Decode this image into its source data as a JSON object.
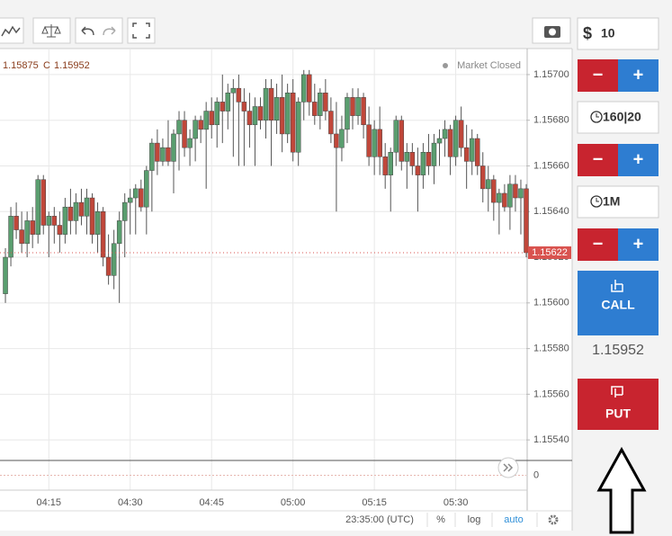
{
  "chart_data": {
    "type": "candlestick",
    "header": {
      "open": "1.15875",
      "close_letter": "C",
      "close": "1.15952"
    },
    "status": "Market Closed",
    "x": [
      "04:07",
      "04:08",
      "04:09",
      "04:10",
      "04:11",
      "04:12",
      "04:13",
      "04:14",
      "04:15",
      "04:16",
      "04:17",
      "04:18",
      "04:19",
      "04:20",
      "04:21",
      "04:22",
      "04:23",
      "04:24",
      "04:25",
      "04:26",
      "04:27",
      "04:28",
      "04:29",
      "04:30",
      "04:31",
      "04:32",
      "04:33",
      "04:34",
      "04:35",
      "04:36",
      "04:37",
      "04:38",
      "04:39",
      "04:40",
      "04:41",
      "04:42",
      "04:43",
      "04:44",
      "04:45",
      "04:46",
      "04:47",
      "04:48",
      "04:49",
      "04:50",
      "04:51",
      "04:52",
      "04:53",
      "04:54",
      "04:55",
      "04:56",
      "04:57",
      "04:58",
      "04:59",
      "05:00",
      "05:01",
      "05:02",
      "05:03",
      "05:04",
      "05:05",
      "05:06",
      "05:07",
      "05:08",
      "05:09",
      "05:10",
      "05:11",
      "05:12",
      "05:13",
      "05:14",
      "05:15",
      "05:16",
      "05:17",
      "05:18",
      "05:19",
      "05:20",
      "05:21",
      "05:22",
      "05:23",
      "05:24",
      "05:25",
      "05:26",
      "05:27",
      "05:28",
      "05:29",
      "05:30",
      "05:31",
      "05:32",
      "05:33",
      "05:34",
      "05:35",
      "05:36",
      "05:37",
      "05:38",
      "05:39",
      "05:40",
      "05:41",
      "05:42",
      "05:43"
    ],
    "open": [
      1.15604,
      1.1562,
      1.15638,
      1.15632,
      1.15626,
      1.15636,
      1.1563,
      1.15654,
      1.15634,
      1.15638,
      1.15634,
      1.1563,
      1.15642,
      1.15636,
      1.15644,
      1.15638,
      1.15646,
      1.1563,
      1.1564,
      1.1562,
      1.15612,
      1.15626,
      1.15636,
      1.15644,
      1.15646,
      1.1565,
      1.15642,
      1.15658,
      1.1567,
      1.15662,
      1.15668,
      1.15662,
      1.15674,
      1.1568,
      1.15668,
      1.15672,
      1.1568,
      1.15676,
      1.15684,
      1.15678,
      1.15688,
      1.15684,
      1.15692,
      1.15694,
      1.15688,
      1.15684,
      1.15678,
      1.15686,
      1.1568,
      1.15694,
      1.1568,
      1.1569,
      1.15674,
      1.15692,
      1.15666,
      1.15688,
      1.157,
      1.15688,
      1.15682,
      1.15692,
      1.15684,
      1.15674,
      1.15668,
      1.15676,
      1.1569,
      1.15682,
      1.1569,
      1.15678,
      1.15664,
      1.15676,
      1.15664,
      1.15656,
      1.15666,
      1.1568,
      1.15662,
      1.15666,
      1.1566,
      1.15656,
      1.15666,
      1.1566,
      1.1567,
      1.15672,
      1.15676,
      1.15664,
      1.1568,
      1.15668,
      1.15662,
      1.15672,
      1.1566,
      1.1565,
      1.15654,
      1.15644,
      1.15648,
      1.15642,
      1.15652,
      1.15646,
      1.1565
    ],
    "high": [
      1.15624,
      1.15642,
      1.15644,
      1.1564,
      1.1564,
      1.15642,
      1.15656,
      1.15656,
      1.1564,
      1.15642,
      1.1564,
      1.15646,
      1.1565,
      1.15648,
      1.1565,
      1.1565,
      1.15648,
      1.15644,
      1.15642,
      1.1563,
      1.15632,
      1.1564,
      1.15648,
      1.1565,
      1.15652,
      1.15654,
      1.1566,
      1.15672,
      1.15676,
      1.15672,
      1.1568,
      1.15676,
      1.15684,
      1.15684,
      1.15676,
      1.15682,
      1.15682,
      1.15688,
      1.1569,
      1.1569,
      1.157,
      1.15696,
      1.15698,
      1.157,
      1.15694,
      1.15692,
      1.1569,
      1.1569,
      1.15698,
      1.15698,
      1.15696,
      1.157,
      1.15696,
      1.15698,
      1.1569,
      1.15702,
      1.15702,
      1.15696,
      1.15694,
      1.15698,
      1.1569,
      1.15688,
      1.15682,
      1.15692,
      1.15694,
      1.15694,
      1.15692,
      1.15686,
      1.1568,
      1.15686,
      1.1567,
      1.15668,
      1.15682,
      1.15682,
      1.1567,
      1.1567,
      1.15668,
      1.1567,
      1.15674,
      1.15674,
      1.15676,
      1.1568,
      1.15678,
      1.15682,
      1.15686,
      1.15678,
      1.15676,
      1.15674,
      1.15666,
      1.1566,
      1.15656,
      1.1565,
      1.15652,
      1.15656,
      1.15656,
      1.15654,
      1.15652
    ],
    "low": [
      1.156,
      1.15616,
      1.15628,
      1.15622,
      1.1562,
      1.15624,
      1.15626,
      1.1563,
      1.1562,
      1.15626,
      1.15622,
      1.15626,
      1.1563,
      1.1563,
      1.15634,
      1.1563,
      1.15626,
      1.15622,
      1.15616,
      1.15608,
      1.15606,
      1.156,
      1.1562,
      1.1563,
      1.1563,
      1.1564,
      1.1563,
      1.1564,
      1.15656,
      1.1566,
      1.1566,
      1.15648,
      1.15658,
      1.15664,
      1.1566,
      1.15662,
      1.1567,
      1.1565,
      1.15672,
      1.15668,
      1.1567,
      1.15676,
      1.15664,
      1.1566,
      1.1566,
      1.15668,
      1.1566,
      1.15676,
      1.15672,
      1.1566,
      1.15674,
      1.15666,
      1.1567,
      1.15662,
      1.1566,
      1.1568,
      1.15682,
      1.15678,
      1.15676,
      1.1568,
      1.1567,
      1.1564,
      1.15662,
      1.1567,
      1.15676,
      1.15678,
      1.15672,
      1.1566,
      1.15656,
      1.15656,
      1.1565,
      1.1564,
      1.1566,
      1.15658,
      1.1565,
      1.15656,
      1.1564,
      1.1565,
      1.15656,
      1.15652,
      1.1566,
      1.15664,
      1.15656,
      1.1566,
      1.15664,
      1.1565,
      1.15656,
      1.15656,
      1.15644,
      1.1564,
      1.15636,
      1.1563,
      1.1564,
      1.15632,
      1.1564,
      1.1563,
      1.1562
    ],
    "close": [
      1.1562,
      1.15638,
      1.15632,
      1.15626,
      1.15636,
      1.1563,
      1.15654,
      1.15634,
      1.15638,
      1.15634,
      1.1563,
      1.15642,
      1.15636,
      1.15644,
      1.15638,
      1.15646,
      1.1563,
      1.1564,
      1.1562,
      1.15612,
      1.15626,
      1.15636,
      1.15644,
      1.15646,
      1.1565,
      1.15642,
      1.15658,
      1.1567,
      1.15662,
      1.15668,
      1.15662,
      1.15674,
      1.1568,
      1.15668,
      1.15672,
      1.1568,
      1.15676,
      1.15684,
      1.15678,
      1.15688,
      1.15684,
      1.15692,
      1.15694,
      1.15688,
      1.15684,
      1.15678,
      1.15686,
      1.1568,
      1.15694,
      1.1568,
      1.1569,
      1.15674,
      1.15692,
      1.15666,
      1.15688,
      1.157,
      1.15688,
      1.15682,
      1.15692,
      1.15684,
      1.15674,
      1.15668,
      1.15676,
      1.1569,
      1.15682,
      1.1569,
      1.15678,
      1.15664,
      1.15676,
      1.15664,
      1.15656,
      1.15666,
      1.1568,
      1.15662,
      1.15666,
      1.1566,
      1.15656,
      1.15666,
      1.1566,
      1.1567,
      1.15672,
      1.15676,
      1.15664,
      1.1568,
      1.15668,
      1.15662,
      1.15672,
      1.1566,
      1.1565,
      1.15654,
      1.15644,
      1.15648,
      1.15642,
      1.15652,
      1.15646,
      1.1565,
      1.15622
    ],
    "up_color": "#5a9e6f",
    "down_color": "#c0473a",
    "xlim": [
      "04:06",
      "05:43"
    ],
    "xticks": [
      "04:15",
      "04:30",
      "04:45",
      "05:00",
      "05:15",
      "05:30"
    ],
    "ylim": [
      1.15531,
      1.15711
    ],
    "yticks": [
      {
        "value": 1.1554,
        "label": "1.15540"
      },
      {
        "value": 1.1556,
        "label": "1.15560"
      },
      {
        "value": 1.1558,
        "label": "1.15580"
      },
      {
        "value": 1.156,
        "label": "1.15600"
      },
      {
        "value": 1.1562,
        "label": "1.15620"
      },
      {
        "value": 1.1564,
        "label": "1.15640"
      },
      {
        "value": 1.1566,
        "label": "1.15660"
      },
      {
        "value": 1.1568,
        "label": "1.15680"
      },
      {
        "value": 1.157,
        "label": "1.15700"
      }
    ],
    "last_price": 1.15622,
    "y3lim": [
      -1,
      1
    ],
    "y3ticks": [
      0
    ],
    "grid": true,
    "log_scale": false
  },
  "footer": {
    "time": "23:35:00 (UTC)",
    "percent": "%",
    "log": "log",
    "auto": "auto"
  },
  "trade_panel": {
    "currency": "$",
    "amount": 10,
    "minus": "−",
    "plus": "+",
    "expiry": "160|20",
    "timeframe": "1M",
    "call": "CALL",
    "price": "1.15952",
    "put": "PUT"
  }
}
